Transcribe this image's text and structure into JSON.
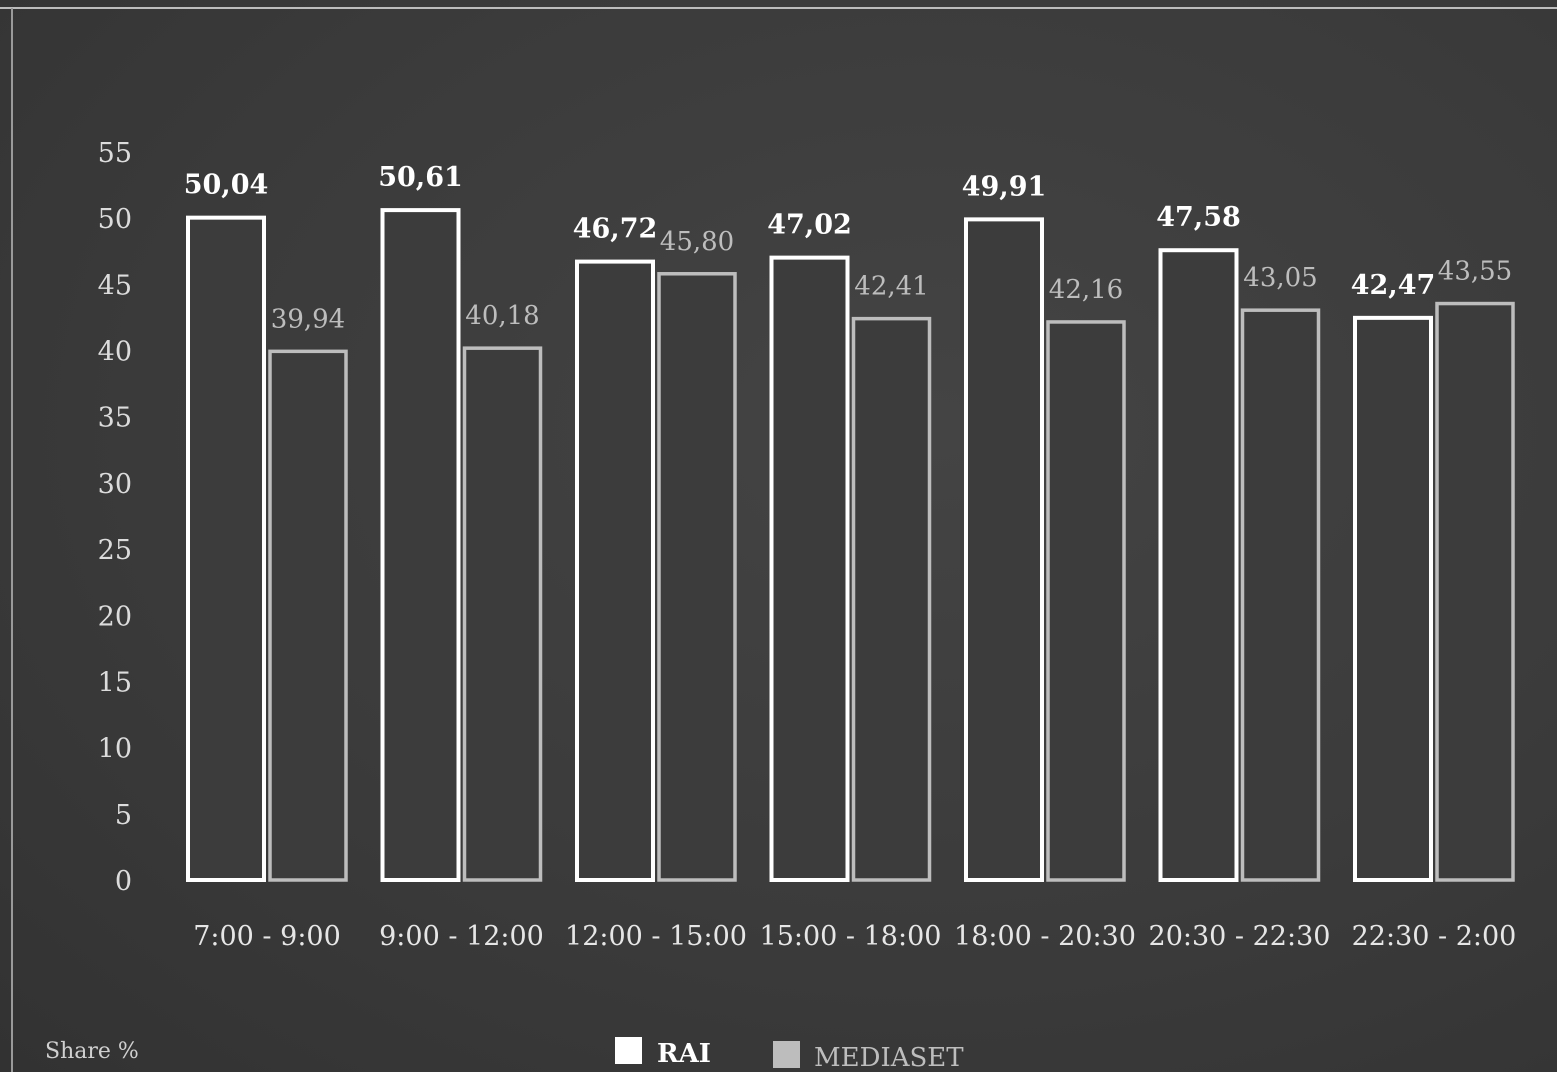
{
  "chart_data": {
    "type": "bar",
    "ylabel": "Share %",
    "ylim": [
      0,
      55
    ],
    "yticks": [
      0,
      5,
      10,
      15,
      20,
      25,
      30,
      35,
      40,
      45,
      50,
      55
    ],
    "grid": false,
    "legend_position": "bottom-center",
    "categories": [
      "7:00 - 9:00",
      "9:00 - 12:00",
      "12:00 - 15:00",
      "15:00 - 18:00",
      "18:00 - 20:30",
      "20:30 - 22:30",
      "22:30 - 2:00"
    ],
    "series": [
      {
        "name": "RAI",
        "values": [
          50.04,
          50.61,
          46.72,
          47.02,
          49.91,
          47.58,
          42.47
        ],
        "value_labels": [
          "50,04",
          "50,61",
          "46,72",
          "47,02",
          "49,91",
          "47,58",
          "42,47"
        ],
        "color": "#ffffff"
      },
      {
        "name": "MEDIASET",
        "values": [
          39.94,
          40.18,
          45.8,
          42.41,
          42.16,
          43.05,
          43.55
        ],
        "value_labels": [
          "39,94",
          "40,18",
          "45,80",
          "42,41",
          "42,16",
          "43,05",
          "43,55"
        ],
        "color": "#bdbdbd"
      }
    ]
  },
  "colors": {
    "background": "#3a3a3a",
    "bar_fill": "#3c3c3c"
  }
}
